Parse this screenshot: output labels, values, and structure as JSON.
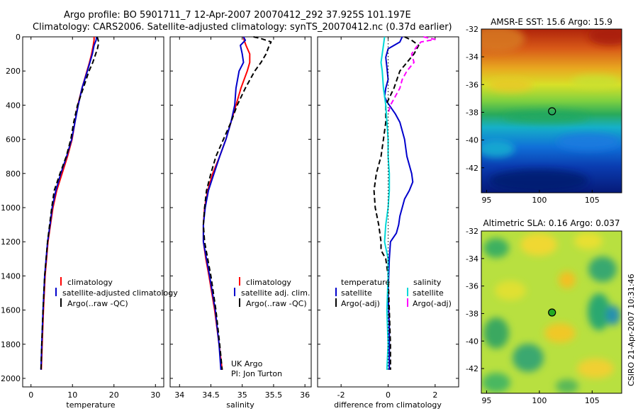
{
  "figure": {
    "title_line1": "Argo profile: BO 5901711_7 12-Apr-2007 20070412_292 37.925S 101.197E",
    "title_line2": "Climatology: CARS2006. Satellite-adjusted climatology: synTS_20070412.nc (0.37d earlier)",
    "side_label": "CSIRO 21-Apr-2007 10:31:46",
    "credit_line1": "UK Argo",
    "credit_line2": "PI: Jon Turton"
  },
  "chart_data": [
    {
      "id": "temperature",
      "type": "line",
      "xlabel": "temperature",
      "ylabel": "",
      "xlim": [
        -2,
        32
      ],
      "ylim": [
        2050,
        0
      ],
      "xticks": [
        0,
        10,
        20,
        30
      ],
      "yticks": [
        0,
        200,
        400,
        600,
        800,
        1000,
        1200,
        1400,
        1600,
        1800,
        2000
      ],
      "legend_title": "",
      "legend": [
        "climatology",
        "satellite-adjusted climatology",
        "Argo(..raw -QC)"
      ],
      "series": [
        {
          "name": "climatology",
          "color": "#ff0000",
          "dash": "solid",
          "y": [
            0,
            20,
            50,
            100,
            150,
            200,
            300,
            400,
            500,
            600,
            700,
            800,
            900,
            1000,
            1100,
            1200,
            1400,
            1600,
            1800,
            1950
          ],
          "x": [
            15.2,
            15.2,
            15.0,
            14.6,
            14.1,
            13.5,
            12.3,
            11.3,
            10.6,
            9.9,
            8.8,
            7.5,
            6.2,
            5.3,
            4.7,
            4.1,
            3.4,
            3.0,
            2.7,
            2.5
          ]
        },
        {
          "name": "satellite-adjusted climatology",
          "color": "#0000cc",
          "dash": "solid",
          "y": [
            0,
            20,
            50,
            100,
            150,
            200,
            300,
            400,
            500,
            600,
            700,
            800,
            900,
            1000,
            1100,
            1200,
            1400,
            1600,
            1800,
            1950
          ],
          "x": [
            15.8,
            15.7,
            15.2,
            14.8,
            14.2,
            13.6,
            12.3,
            11.4,
            10.6,
            9.8,
            8.6,
            7.2,
            6.0,
            5.1,
            4.6,
            4.0,
            3.3,
            2.9,
            2.6,
            2.4
          ]
        },
        {
          "name": "Argo(..raw -QC)",
          "color": "#000000",
          "dash": "dashed",
          "y": [
            0,
            10,
            30,
            50,
            70,
            100,
            150,
            200,
            300,
            400,
            500,
            600,
            700,
            800,
            900,
            1000,
            1100,
            1200,
            1400,
            1600,
            1800,
            1950
          ],
          "x": [
            15.9,
            16.1,
            16.3,
            16.2,
            16.0,
            15.6,
            14.9,
            14.0,
            12.6,
            11.2,
            10.3,
            9.6,
            8.5,
            7.0,
            5.6,
            5.0,
            4.5,
            4.0,
            3.3,
            2.9,
            2.6,
            2.4
          ]
        }
      ]
    },
    {
      "id": "salinity",
      "type": "line",
      "xlabel": "salinity",
      "ylabel": "",
      "xlim": [
        33.85,
        36.1
      ],
      "ylim": [
        2050,
        0
      ],
      "xticks": [
        34,
        34.5,
        35,
        35.5,
        36
      ],
      "legend_title": "",
      "legend": [
        "climatology",
        "satellite adj. clim.",
        "Argo(..raw -QC)"
      ],
      "series": [
        {
          "name": "climatology",
          "color": "#ff0000",
          "dash": "solid",
          "y": [
            0,
            20,
            50,
            100,
            150,
            200,
            300,
            400,
            500,
            600,
            700,
            800,
            900,
            1000,
            1100,
            1200,
            1300,
            1400,
            1600,
            1800,
            1950
          ],
          "x": [
            35.02,
            35.03,
            35.06,
            35.12,
            35.12,
            35.08,
            34.98,
            34.9,
            34.82,
            34.74,
            34.64,
            34.53,
            34.45,
            34.4,
            34.38,
            34.38,
            34.42,
            34.47,
            34.56,
            34.63,
            34.68
          ]
        },
        {
          "name": "satellite adj. clim.",
          "color": "#0000cc",
          "dash": "solid",
          "y": [
            0,
            20,
            50,
            100,
            150,
            200,
            300,
            400,
            500,
            600,
            700,
            800,
            900,
            1000,
            1100,
            1200,
            1300,
            1400,
            1600,
            1800,
            1950
          ],
          "x": [
            35.02,
            35.05,
            34.97,
            35.0,
            35.02,
            34.95,
            34.9,
            34.88,
            34.82,
            34.74,
            34.64,
            34.55,
            34.46,
            34.41,
            34.38,
            34.38,
            34.43,
            34.48,
            34.57,
            34.63,
            34.66
          ]
        },
        {
          "name": "Argo(..raw -QC)",
          "color": "#000000",
          "dash": "dashed",
          "y": [
            0,
            10,
            30,
            60,
            100,
            150,
            200,
            300,
            400,
            500,
            600,
            700,
            800,
            900,
            1000,
            1100,
            1200,
            1400,
            1600,
            1800,
            1950
          ],
          "x": [
            35.18,
            35.3,
            35.46,
            35.42,
            35.38,
            35.3,
            35.2,
            35.05,
            34.92,
            34.82,
            34.7,
            34.58,
            34.5,
            34.43,
            34.4,
            34.38,
            34.4,
            34.5,
            34.58,
            34.64,
            34.68
          ]
        }
      ]
    },
    {
      "id": "difference",
      "type": "line",
      "xlabel": "difference from climatology",
      "ylabel": "",
      "xlim": [
        -3,
        3
      ],
      "ylim": [
        2050,
        0
      ],
      "xticks": [
        -2,
        0,
        2
      ],
      "legend_title_t": "temperature",
      "legend_title_s": "salinity",
      "legend_t": [
        "satellite",
        "Argo(-adj)"
      ],
      "legend_s": [
        "satellite",
        "Argo(-adj)"
      ],
      "series": [
        {
          "name": "temperature satellite",
          "color": "#0000cc",
          "dash": "solid",
          "y": [
            0,
            30,
            70,
            120,
            180,
            250,
            300,
            350,
            380,
            400,
            450,
            500,
            600,
            700,
            800,
            850,
            900,
            950,
            1000,
            1050,
            1100,
            1150,
            1200,
            1300,
            1500,
            1700,
            1950
          ],
          "x": [
            0.6,
            0.5,
            0.0,
            -0.1,
            -0.05,
            0.0,
            -0.1,
            -0.15,
            -0.05,
            0.05,
            0.3,
            0.5,
            0.7,
            0.8,
            1.0,
            1.05,
            0.9,
            0.7,
            0.6,
            0.5,
            0.45,
            0.35,
            0.1,
            0.05,
            0.0,
            0.05,
            0.05
          ]
        },
        {
          "name": "temperature Argo(-adj)",
          "color": "#000000",
          "dash": "dashed",
          "y": [
            0,
            20,
            50,
            100,
            200,
            300,
            400,
            500,
            600,
            700,
            800,
            900,
            1000,
            1100,
            1200,
            1250,
            1300,
            1400,
            1600,
            1800,
            1950
          ],
          "x": [
            0.7,
            1.0,
            1.3,
            1.1,
            0.5,
            0.25,
            -0.1,
            -0.1,
            -0.2,
            -0.3,
            -0.5,
            -0.6,
            -0.55,
            -0.4,
            -0.3,
            -0.3,
            -0.1,
            0.0,
            0.05,
            0.1,
            0.1
          ]
        },
        {
          "name": "salinity satellite",
          "color": "#00d8d8",
          "dash": "solid",
          "y": [
            0,
            50,
            100,
            150,
            200,
            300,
            400,
            500,
            600,
            700,
            800,
            900,
            1000,
            1100,
            1200,
            1300,
            1400,
            1600,
            1800,
            1950
          ],
          "x": [
            -0.15,
            -0.2,
            -0.25,
            -0.3,
            -0.25,
            -0.2,
            -0.1,
            -0.05,
            0.0,
            0.0,
            0.05,
            0.05,
            0.0,
            -0.1,
            -0.15,
            0.0,
            0.0,
            -0.05,
            0.0,
            -0.05
          ]
        },
        {
          "name": "salinity Argo(-adj)",
          "color": "#ff00ff",
          "dash": "dashed",
          "y": [
            0,
            15,
            30,
            60,
            100,
            150,
            200,
            250,
            300,
            350,
            400,
            450
          ],
          "x": [
            1.5,
            2.0,
            1.4,
            1.2,
            1.0,
            1.1,
            0.8,
            0.6,
            0.5,
            0.3,
            0.1,
            0.0
          ]
        },
        {
          "name": "temperature satellite-adj difference",
          "color": "#000000",
          "dash": "dotted",
          "y": [
            0,
            100,
            200,
            300,
            400,
            600,
            800,
            1000,
            1200,
            1400,
            1600,
            1800,
            1950
          ],
          "x": [
            0.0,
            0.0,
            0.0,
            0.0,
            0.0,
            0.0,
            0.0,
            0.0,
            0.0,
            0.0,
            0.0,
            0.0,
            0.0
          ]
        }
      ]
    },
    {
      "id": "sst_map",
      "type": "heatmap",
      "title": "AMSR-E SST: 15.6 Argo: 15.9",
      "xlim": [
        94.5,
        107.8
      ],
      "ylim": [
        -43.8,
        -32
      ],
      "xticks": [
        95,
        100,
        105
      ],
      "yticks": [
        -32,
        -34,
        -36,
        -38,
        -40,
        -42
      ],
      "marker": {
        "lon": 101.197,
        "lat": -37.925,
        "fill": "none"
      }
    },
    {
      "id": "sla_map",
      "type": "heatmap",
      "title": "Altimetric SLA: 0.16 Argo: 0.037",
      "xlim": [
        94.5,
        107.8
      ],
      "ylim": [
        -43.8,
        -32
      ],
      "xticks": [
        95,
        100,
        105
      ],
      "yticks": [
        -32,
        -34,
        -36,
        -38,
        -40,
        -42
      ],
      "marker": {
        "lon": 101.197,
        "lat": -37.925,
        "fill": "#22aa22"
      }
    }
  ]
}
